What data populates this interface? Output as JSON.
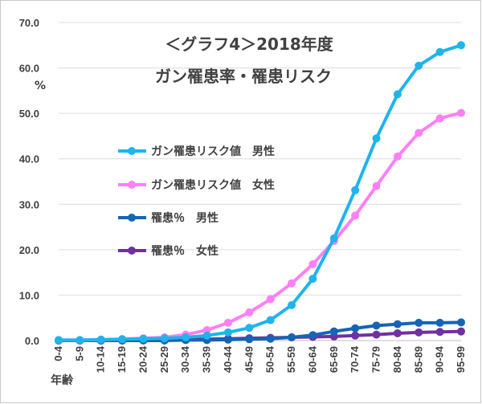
{
  "chart_data": {
    "type": "line",
    "title_line1": "＜グラフ4＞2018年度",
    "title_line2": "ガン罹患率・罹患リスク",
    "ylabel": "%",
    "xlabel": "年齢",
    "ylim": [
      0,
      70
    ],
    "yticks": [
      "0.0",
      "10.0",
      "20.0",
      "30.0",
      "40.0",
      "50.0",
      "60.0",
      "70.0"
    ],
    "grid": true,
    "legend_position": "left-center",
    "categories": [
      "0-4",
      "5-9",
      "10-14",
      "15-19",
      "20-24",
      "25-29",
      "30-34",
      "35-39",
      "40-44",
      "45-49",
      "50-54",
      "55-59",
      "60-64",
      "65-69",
      "70-74",
      "75-79",
      "80-84",
      "85-89",
      "90-94",
      "95-99"
    ],
    "series": [
      {
        "name": "ガン罹患リスク値　男性",
        "color": "#1FB4EC",
        "values": [
          0.1,
          0.1,
          0.2,
          0.3,
          0.4,
          0.5,
          0.7,
          1.1,
          1.8,
          2.8,
          4.5,
          7.8,
          13.6,
          22.5,
          33.1,
          44.5,
          54.2,
          60.5,
          63.5,
          65.0
        ]
      },
      {
        "name": "ガン罹患リスク値　女性",
        "color": "#FF7FF6",
        "values": [
          0.1,
          0.1,
          0.2,
          0.3,
          0.5,
          0.7,
          1.3,
          2.3,
          3.9,
          6.2,
          9.1,
          12.6,
          16.8,
          21.9,
          27.5,
          34.0,
          40.5,
          45.7,
          48.9,
          50.1
        ]
      },
      {
        "name": "罹患％　男性",
        "color": "#1565B4",
        "values": [
          0.0,
          0.0,
          0.0,
          0.0,
          0.0,
          0.0,
          0.1,
          0.1,
          0.2,
          0.3,
          0.4,
          0.7,
          1.2,
          2.0,
          2.7,
          3.3,
          3.6,
          3.9,
          3.9,
          4.0
        ]
      },
      {
        "name": "罹患％　女性",
        "color": "#7030A0",
        "values": [
          0.0,
          0.0,
          0.0,
          0.0,
          0.1,
          0.1,
          0.2,
          0.3,
          0.4,
          0.5,
          0.6,
          0.7,
          0.8,
          0.9,
          1.1,
          1.3,
          1.6,
          1.8,
          1.9,
          2.0
        ]
      }
    ]
  }
}
